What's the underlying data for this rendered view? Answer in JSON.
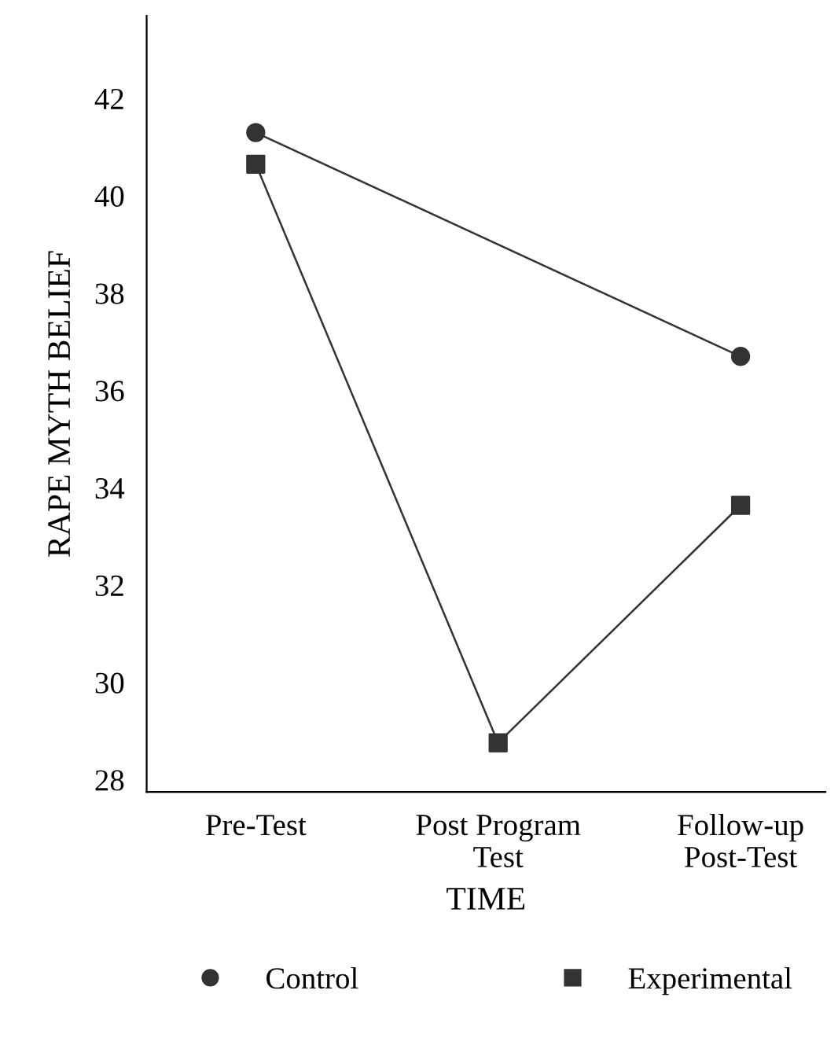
{
  "chart_data": {
    "type": "line",
    "xlabel": "TIME",
    "ylabel": "RAPE MYTH BELIEF",
    "categories": [
      "Pre-Test",
      "Post Program\nTest",
      "Follow-up\nPost-Test"
    ],
    "series": [
      {
        "name": "Control",
        "color": "#333333",
        "marker": "circle",
        "values": [
          41.3,
          null,
          36.7
        ]
      },
      {
        "name": "Experimental",
        "color": "#333333",
        "marker": "square",
        "values": [
          40.65,
          28.76,
          33.64
        ]
      }
    ],
    "ylim": [
      27.75,
      43.7
    ],
    "yticks": [
      28,
      30,
      32,
      34,
      36,
      38,
      40,
      42
    ],
    "grid": false,
    "legend": "bottom",
    "line_style": "solid"
  }
}
